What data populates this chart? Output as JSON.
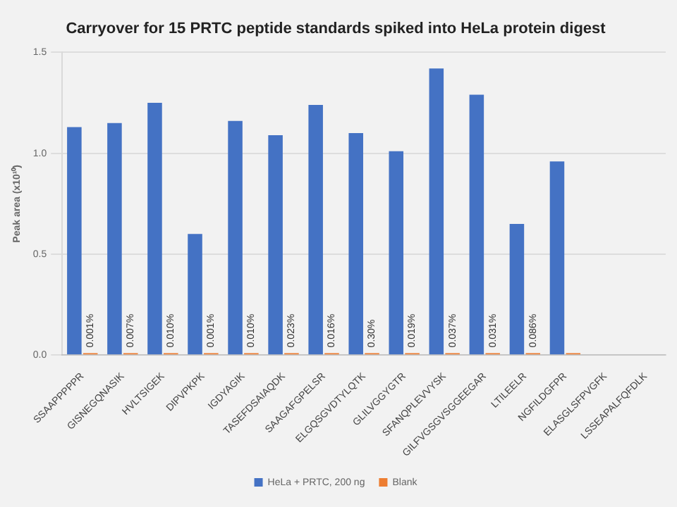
{
  "chart_data": {
    "type": "bar",
    "title": "Carryover for 15 PRTC peptide standards spiked into HeLa protein digest",
    "ylabel": "Peak area (x10¹⁰)",
    "categories": [
      "SSAAPPPPPR",
      "GISNEGQNASIK",
      "HVLTSIGEK",
      "DIPVPKPK",
      "IGDYAGIK",
      "TASEFDSAIAQDK",
      "SAAGAFGPELSR",
      "ELGQSGVDTYLQTK",
      "GLILVGGYGTR",
      "SFANQPLEVVYSK",
      "GILFVGSGVSGGEEGAR",
      "LTILEELR",
      "NGFILDGFPR",
      "ELASGLSFPVGFK",
      "LSSEAPALFQFDLK"
    ],
    "series": [
      {
        "name": "HeLa + PRTC, 200 ng",
        "color": "#4472c4",
        "values": [
          1.13,
          1.15,
          1.25,
          0.6,
          1.16,
          1.09,
          1.24,
          1.1,
          1.01,
          1.42,
          1.29,
          0.65,
          0.96,
          null,
          null
        ]
      },
      {
        "name": "Blank",
        "color": "#ed7d31",
        "values": [
          0.01,
          0.01,
          0.01,
          0.01,
          0.01,
          0.01,
          0.01,
          0.01,
          0.01,
          0.01,
          0.01,
          0.01,
          0.01,
          null,
          null
        ]
      }
    ],
    "annotations": [
      {
        "text": "0.001%",
        "x": "SSAAPPPPPR",
        "y": 0.01
      },
      {
        "text": "0.007%",
        "x": "GISNEGQNASIK",
        "y": 0.01
      },
      {
        "text": "0.010%",
        "x": "HVLTSIGEK",
        "y": 0.01
      },
      {
        "text": "0.001%",
        "x": "DIPVPKPK",
        "y": 0.01
      },
      {
        "text": "0.010%",
        "x": "IGDYAGIK",
        "y": 0.01
      },
      {
        "text": "0.023%",
        "x": "TASEFDSAIAQDK",
        "y": 0.01
      },
      {
        "text": "0.016%",
        "x": "SAAGAFGPELSR",
        "y": 0.01
      },
      {
        "text": "0.30%",
        "x": "ELGQSGVDTYLQTK",
        "y": 0.01
      },
      {
        "text": "0.019%",
        "x": "GLILVGGYGTR",
        "y": 0.01
      },
      {
        "text": "0.037%",
        "x": "SFANQPLEVVYSK",
        "y": 0.01
      },
      {
        "text": "0.031%",
        "x": "GILFVGSGVSGGEEGAR",
        "y": 0.01
      },
      {
        "text": "0.086%",
        "x": "LTILEELR",
        "y": 0.01
      }
    ],
    "ylim": [
      0,
      1.5
    ],
    "yticks": [
      {
        "value": 0,
        "label": "0.0"
      },
      {
        "value": 0.5,
        "label": "0.5"
      },
      {
        "value": 1,
        "label": "1.0"
      },
      {
        "value": 1.5,
        "label": "1.5"
      }
    ],
    "grid": "y",
    "legend": "bottom"
  }
}
